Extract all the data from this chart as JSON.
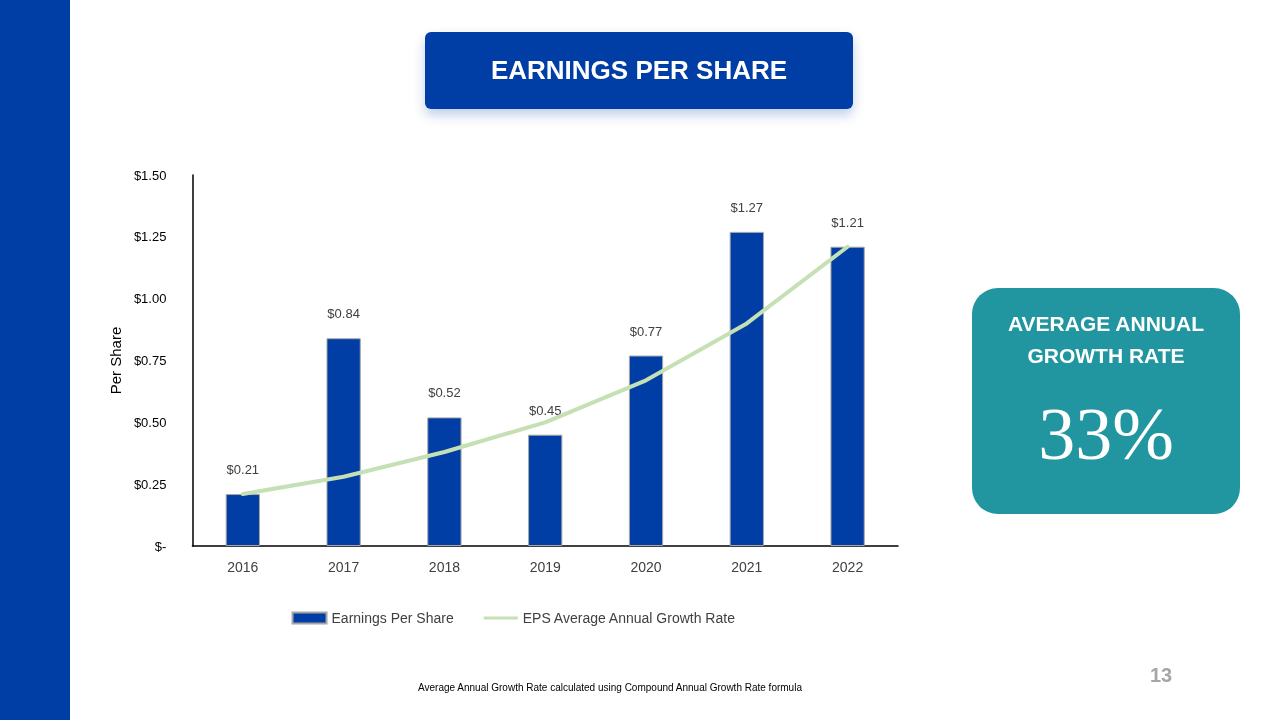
{
  "chart_data": {
    "type": "bar",
    "title": "EARNINGS PER SHARE",
    "ylabel": "Per Share",
    "categories": [
      "2016",
      "2017",
      "2018",
      "2019",
      "2020",
      "2021",
      "2022"
    ],
    "series": [
      {
        "name": "Earnings Per Share",
        "color": "#003da5",
        "values": [
          0.21,
          0.84,
          0.52,
          0.45,
          0.77,
          1.27,
          1.21
        ],
        "value_labels": [
          "$0.21",
          "$0.84",
          "$0.52",
          "$0.45",
          "$0.77",
          "$1.27",
          "$1.21"
        ]
      },
      {
        "name": "EPS Average Annual Growth Rate",
        "type": "line",
        "color": "#c5e0b4",
        "values": [
          0.21,
          0.28,
          0.38,
          0.5,
          0.67,
          0.9,
          1.21
        ]
      }
    ],
    "ylim": [
      0,
      1.5
    ],
    "yticks": [
      {
        "value": 0,
        "label": "$-"
      },
      {
        "value": 0.25,
        "label": "$0.25"
      },
      {
        "value": 0.5,
        "label": "$0.50"
      },
      {
        "value": 0.75,
        "label": "$0.75"
      },
      {
        "value": 1,
        "label": "$1.00"
      },
      {
        "value": 1.25,
        "label": "$1.25"
      },
      {
        "value": 1.5,
        "label": "$1.50"
      }
    ],
    "grid": false,
    "legend": "bottom",
    "marker": "none",
    "line_style": "solid",
    "annotations": [
      "AVERAGE ANNUAL GROWTH RATE",
      "33%",
      "Average Annual Growth Rate calculated using Compound Annual Growth Rate formula",
      "13"
    ]
  }
}
